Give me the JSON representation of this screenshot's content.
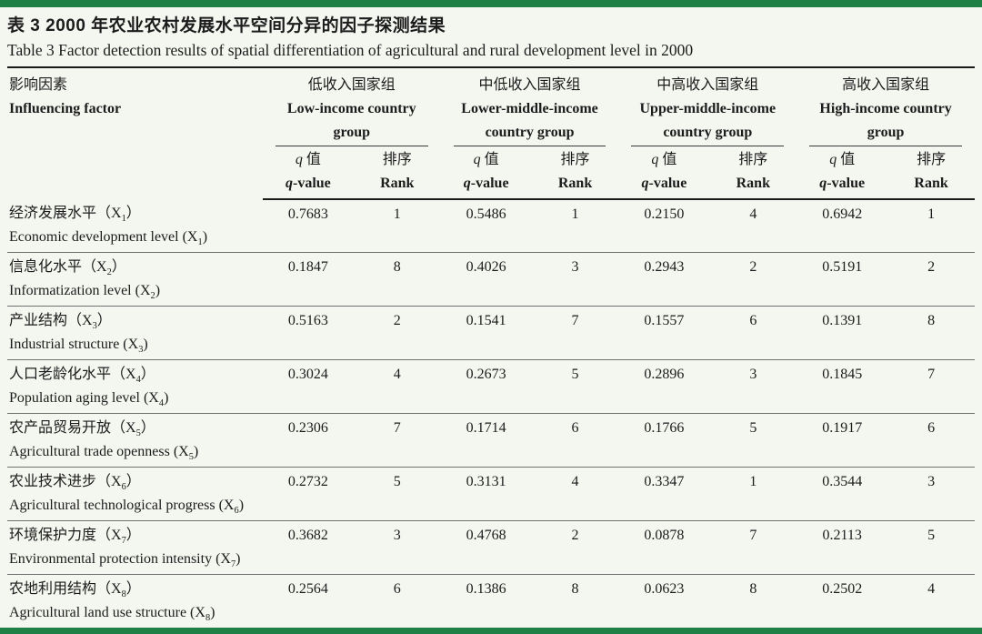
{
  "page": {
    "title_zh": "表 3   2000 年农业农村发展水平空间分异的因子探测结果",
    "title_en": "Table 3   Factor detection results of spatial differentiation of agricultural and rural development level in 2000",
    "accent_color": "#1e8044"
  },
  "table": {
    "factor_header": {
      "zh": "影响因素",
      "en": "Influencing factor"
    },
    "groups": [
      {
        "zh": "低收入国家组",
        "en_line1": "Low-income country",
        "en_line2": "group"
      },
      {
        "zh": "中低收入国家组",
        "en_line1": "Lower-middle-income",
        "en_line2": "country group"
      },
      {
        "zh": "中高收入国家组",
        "en_line1": "Upper-middle-income",
        "en_line2": "country group"
      },
      {
        "zh": "高收入国家组",
        "en_line1": "High-income country",
        "en_line2": "group"
      }
    ],
    "subheader": {
      "q_symbol": "q",
      "q_zh_rest": " 值",
      "q_en_rest": "-value",
      "rank_zh": "排序",
      "rank_en": "Rank"
    },
    "rows": [
      {
        "zh": "经济发展水平（X1）",
        "en": "Economic development level (X1)",
        "values": [
          "0.7683",
          "1",
          "0.5486",
          "1",
          "0.2150",
          "4",
          "0.6942",
          "1"
        ]
      },
      {
        "zh": "信息化水平（X2）",
        "en": "Informatization level (X2)",
        "values": [
          "0.1847",
          "8",
          "0.4026",
          "3",
          "0.2943",
          "2",
          "0.5191",
          "2"
        ]
      },
      {
        "zh": "产业结构（X3）",
        "en": "Industrial structure (X3)",
        "values": [
          "0.5163",
          "2",
          "0.1541",
          "7",
          "0.1557",
          "6",
          "0.1391",
          "8"
        ]
      },
      {
        "zh": "人口老龄化水平（X4）",
        "en": "Population aging level (X4)",
        "values": [
          "0.3024",
          "4",
          "0.2673",
          "5",
          "0.2896",
          "3",
          "0.1845",
          "7"
        ]
      },
      {
        "zh": "农产品贸易开放（X5）",
        "en": "Agricultural trade openness (X5)",
        "values": [
          "0.2306",
          "7",
          "0.1714",
          "6",
          "0.1766",
          "5",
          "0.1917",
          "6"
        ]
      },
      {
        "zh": "农业技术进步（X6）",
        "en": "Agricultural technological progress (X6)",
        "values": [
          "0.2732",
          "5",
          "0.3131",
          "4",
          "0.3347",
          "1",
          "0.3544",
          "3"
        ]
      },
      {
        "zh": "环境保护力度（X7）",
        "en": "Environmental protection intensity (X7)",
        "values": [
          "0.3682",
          "3",
          "0.4768",
          "2",
          "0.0878",
          "7",
          "0.2113",
          "5"
        ]
      },
      {
        "zh": "农地利用结构（X8）",
        "en": "Agricultural land use structure (X8)",
        "values": [
          "0.2564",
          "6",
          "0.1386",
          "8",
          "0.0623",
          "8",
          "0.2502",
          "4"
        ]
      }
    ]
  }
}
